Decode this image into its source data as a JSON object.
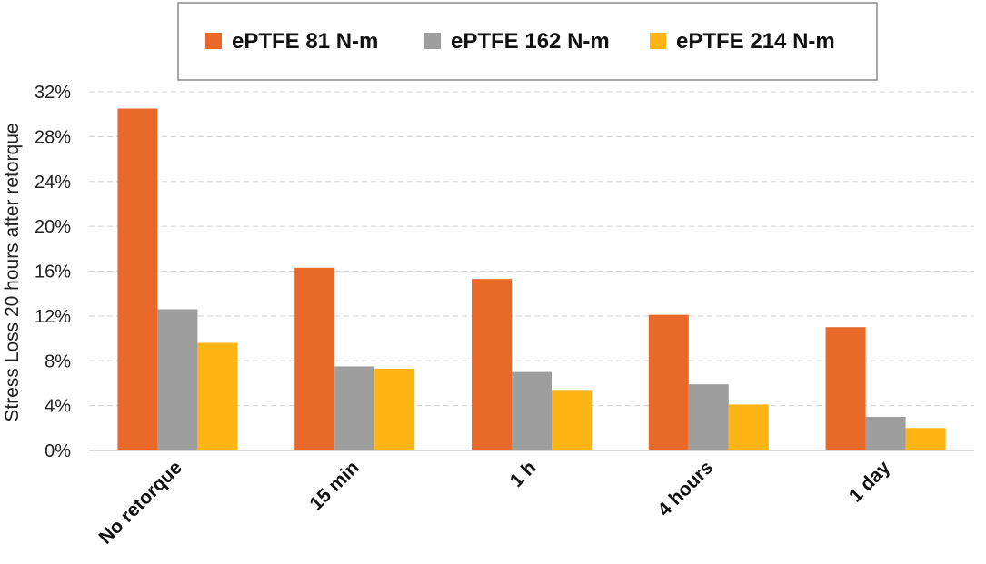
{
  "chart_data": {
    "type": "bar",
    "title": "",
    "xlabel": "",
    "ylabel": "Stress Loss 20 hours after retorque",
    "categories": [
      "No retorque",
      "15 min",
      "1 h",
      "4 hours",
      "1 day"
    ],
    "series": [
      {
        "name": "ePTFE 81 N-m",
        "color": "#E8692A",
        "values": [
          30.5,
          16.3,
          15.3,
          12.1,
          11.0
        ]
      },
      {
        "name": "ePTFE 162 N-m",
        "color": "#9E9E9E",
        "values": [
          12.6,
          7.5,
          7.0,
          5.9,
          3.0
        ]
      },
      {
        "name": "ePTFE 214 N-m",
        "color": "#FDB515",
        "values": [
          9.6,
          7.3,
          5.4,
          4.1,
          2.0
        ]
      }
    ],
    "ylim": [
      0,
      32
    ],
    "yticks": [
      0,
      4,
      8,
      12,
      16,
      20,
      24,
      28,
      32
    ],
    "ytick_labels": [
      "0%",
      "4%",
      "8%",
      "12%",
      "16%",
      "20%",
      "24%",
      "28%",
      "32%"
    ],
    "grid": true,
    "legend_position": "top-center"
  }
}
